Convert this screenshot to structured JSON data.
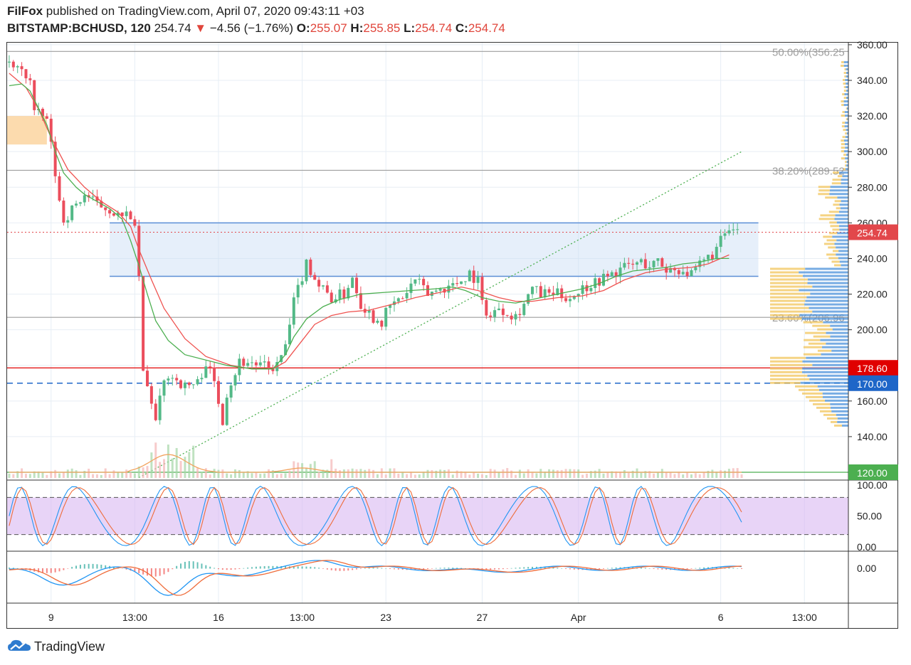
{
  "header": {
    "publisher": "FilFox",
    "published_text": " published on TradingView.com, April 07, 2020 09:43:11 +03",
    "symbol": "BITSTAMP:BCHUSD, 120",
    "last": "254.74",
    "arrow": "▼",
    "change": "−4.56 (−1.76%)",
    "o_label": "O:",
    "o_value": "255.07",
    "h_label": "H:",
    "h_value": "255.85",
    "l_label": "L:",
    "l_value": "254.74",
    "c_label": "C:",
    "c_value": "254.74"
  },
  "branding": {
    "logo_text": "TradingView"
  },
  "colors": {
    "up": "#53b987",
    "down": "#eb4d5c",
    "ma": "#ef5350",
    "ma2": "#4caf50",
    "zone": "#c8dcf5",
    "price_tag": "#e2474b",
    "level_red": "#e00000",
    "level_blue": "#1e66c8",
    "level_green": "#4caf50"
  },
  "chart_data": [
    {
      "type": "candlestick",
      "panel": "price",
      "y_axis": {
        "ticks": [
          "140.00",
          "160.00",
          "180.00",
          "200.00",
          "220.00",
          "240.00",
          "260.00",
          "280.00",
          "300.00",
          "320.00",
          "340.00",
          "360.00"
        ],
        "ylim": [
          117,
          362
        ]
      },
      "x_axis": {
        "ticks": [
          "9",
          "13:00",
          "16",
          "13:00",
          "23",
          "27",
          "Apr",
          "6",
          "13:00"
        ]
      },
      "price_tags": [
        {
          "label": "254.74",
          "value": 254.74,
          "color": "#e2474b"
        },
        {
          "label": "178.60",
          "value": 178.6,
          "color": "#e00000"
        },
        {
          "label": "170.00",
          "value": 170.0,
          "color": "#1e66c8"
        },
        {
          "label": "120.00",
          "value": 120.0,
          "color": "#4caf50"
        }
      ],
      "fib_levels": [
        {
          "label": "50.00%(356.25",
          "value": 356.25
        },
        {
          "label": "38.20%(289.52",
          "value": 289.52
        },
        {
          "label": "23.60%(206.96",
          "value": 206.96
        }
      ],
      "zone": {
        "from": 230,
        "to": 260
      },
      "close_path": [
        [
          0,
          348
        ],
        [
          3,
          345
        ],
        [
          5,
          340
        ],
        [
          6,
          322
        ],
        [
          9,
          318
        ],
        [
          10,
          303
        ],
        [
          12,
          272
        ],
        [
          13,
          262
        ],
        [
          16,
          270
        ],
        [
          18,
          276
        ],
        [
          21,
          270
        ],
        [
          24,
          268
        ],
        [
          27,
          262
        ],
        [
          29,
          265
        ],
        [
          30,
          255
        ],
        [
          31,
          230
        ],
        [
          32,
          175
        ],
        [
          34,
          160
        ],
        [
          35,
          148
        ],
        [
          36,
          160
        ],
        [
          37,
          170
        ],
        [
          38,
          175
        ],
        [
          40,
          172
        ],
        [
          42,
          168
        ],
        [
          45,
          170
        ],
        [
          47,
          182
        ],
        [
          49,
          170
        ],
        [
          50,
          160
        ],
        [
          51,
          150
        ],
        [
          52,
          165
        ],
        [
          55,
          182
        ],
        [
          57,
          182
        ],
        [
          60,
          180
        ],
        [
          62,
          178
        ],
        [
          64,
          180
        ],
        [
          66,
          190
        ],
        [
          68,
          215
        ],
        [
          71,
          238
        ],
        [
          74,
          225
        ],
        [
          77,
          218
        ],
        [
          80,
          220
        ],
        [
          82,
          230
        ],
        [
          84,
          215
        ],
        [
          87,
          207
        ],
        [
          89,
          205
        ],
        [
          91,
          213
        ],
        [
          94,
          218
        ],
        [
          97,
          228
        ],
        [
          100,
          220
        ],
        [
          103,
          223
        ],
        [
          106,
          225
        ],
        [
          108,
          228
        ],
        [
          110,
          232
        ],
        [
          112,
          227
        ],
        [
          113,
          215
        ],
        [
          115,
          207
        ],
        [
          117,
          213
        ],
        [
          119,
          210
        ],
        [
          121,
          208
        ],
        [
          123,
          215
        ],
        [
          125,
          223
        ],
        [
          127,
          220
        ],
        [
          131,
          220
        ],
        [
          134,
          218
        ],
        [
          136,
          222
        ],
        [
          139,
          226
        ],
        [
          143,
          230
        ],
        [
          147,
          235
        ],
        [
          151,
          238
        ],
        [
          153,
          236
        ],
        [
          155,
          238
        ],
        [
          157,
          234
        ],
        [
          161,
          234
        ],
        [
          163,
          230
        ],
        [
          165,
          236
        ],
        [
          169,
          245
        ],
        [
          171,
          254
        ],
        [
          173,
          255
        ],
        [
          174,
          254.74
        ]
      ],
      "ma_slow_path": [
        [
          0,
          344
        ],
        [
          4,
          336
        ],
        [
          7,
          324
        ],
        [
          10,
          308
        ],
        [
          14,
          290
        ],
        [
          18,
          280
        ],
        [
          22,
          272
        ],
        [
          26,
          266
        ],
        [
          29,
          258
        ],
        [
          31,
          245
        ],
        [
          34,
          228
        ],
        [
          37,
          212
        ],
        [
          42,
          195
        ],
        [
          47,
          185
        ],
        [
          53,
          180
        ],
        [
          58,
          178
        ],
        [
          63,
          178
        ],
        [
          66,
          182
        ],
        [
          68,
          188
        ],
        [
          70,
          194
        ],
        [
          73,
          203
        ],
        [
          77,
          208
        ],
        [
          81,
          210
        ],
        [
          86,
          211
        ],
        [
          91,
          214
        ],
        [
          97,
          218
        ],
        [
          103,
          221
        ],
        [
          108,
          224
        ],
        [
          112,
          222
        ],
        [
          117,
          218
        ],
        [
          121,
          216
        ],
        [
          125,
          216
        ],
        [
          131,
          218
        ],
        [
          137,
          219
        ],
        [
          142,
          222
        ],
        [
          147,
          228
        ],
        [
          152,
          232
        ],
        [
          157,
          234
        ],
        [
          163,
          235
        ],
        [
          167,
          237
        ],
        [
          170,
          240
        ],
        [
          172,
          242
        ]
      ],
      "ma_fast_path": [
        [
          0,
          337
        ],
        [
          3,
          338
        ],
        [
          5,
          334
        ],
        [
          6,
          329
        ],
        [
          9,
          315
        ],
        [
          11,
          300
        ],
        [
          13,
          288
        ],
        [
          16,
          280
        ],
        [
          18,
          276
        ],
        [
          21,
          272
        ],
        [
          24,
          268
        ],
        [
          27,
          262
        ],
        [
          29,
          250
        ],
        [
          31,
          236
        ],
        [
          33,
          220
        ],
        [
          35,
          205
        ],
        [
          38,
          194
        ],
        [
          42,
          186
        ],
        [
          47,
          183
        ],
        [
          52,
          180
        ],
        [
          58,
          178
        ],
        [
          63,
          178
        ],
        [
          66,
          186
        ],
        [
          68,
          196
        ],
        [
          71,
          206
        ],
        [
          75,
          213
        ],
        [
          79,
          217
        ],
        [
          84,
          220
        ],
        [
          90,
          221
        ],
        [
          96,
          222
        ],
        [
          102,
          223
        ],
        [
          106,
          224
        ],
        [
          109,
          222
        ],
        [
          113,
          218
        ],
        [
          117,
          216
        ],
        [
          121,
          215
        ],
        [
          127,
          218
        ],
        [
          133,
          221
        ],
        [
          137,
          223
        ],
        [
          141,
          226
        ],
        [
          145,
          230
        ],
        [
          149,
          233
        ],
        [
          153,
          234
        ],
        [
          157,
          235
        ],
        [
          161,
          237
        ],
        [
          165,
          238
        ],
        [
          169,
          240
        ],
        [
          172,
          240
        ]
      ],
      "trendline": {
        "from": [
          31,
          117
        ],
        "to": [
          175,
          300
        ]
      }
    },
    {
      "type": "line",
      "panel": "stochastic",
      "y_axis": {
        "ticks": [
          "0.00",
          "50.00",
          "100.00"
        ],
        "ylim": [
          -5,
          105
        ]
      },
      "bands": [
        20,
        80
      ]
    },
    {
      "type": "histogram",
      "panel": "macd",
      "y_axis": {
        "ticks": [
          "0.00"
        ]
      }
    }
  ]
}
